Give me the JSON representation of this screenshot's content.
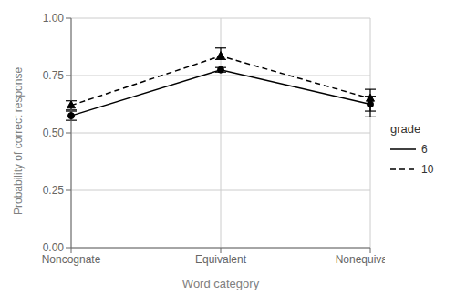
{
  "chart_data": {
    "type": "line",
    "categories": [
      "Noncognate",
      "Equivalent",
      "Nonequivalent"
    ],
    "series": [
      {
        "name": "6",
        "color": "#000000",
        "marker": "circle",
        "line_style": "solid",
        "values": [
          0.575,
          0.775,
          0.625
        ],
        "ci_lower": [
          0.555,
          0.765,
          0.595
        ],
        "ci_upper": [
          0.595,
          0.785,
          0.66
        ]
      },
      {
        "name": "10",
        "color": "#000000",
        "marker": "triangle",
        "line_style": "dashed",
        "values": [
          0.62,
          0.835,
          0.65
        ],
        "ci_lower": [
          0.6,
          0.82,
          0.57
        ],
        "ci_upper": [
          0.64,
          0.87,
          0.69
        ]
      }
    ],
    "xlabel": "Word category",
    "ylabel": "Probability of correct response",
    "ylim": [
      0.0,
      1.0
    ],
    "yticks": [
      {
        "value": 0.0,
        "label": "0.00"
      },
      {
        "value": 0.25,
        "label": "0.25"
      },
      {
        "value": 0.5,
        "label": "0.50"
      },
      {
        "value": 0.75,
        "label": "0.75"
      },
      {
        "value": 1.0,
        "label": "1.00"
      }
    ],
    "grid": true,
    "legend": "right",
    "legend_title": "grade"
  }
}
